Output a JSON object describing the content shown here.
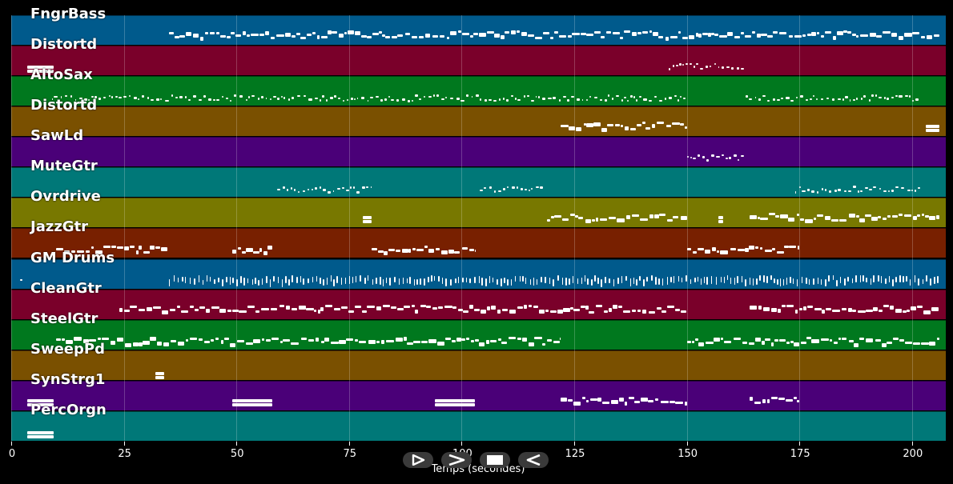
{
  "tracks": [
    {
      "name": "FngrBass",
      "color": "#005a8c"
    },
    {
      "name": "Distortd",
      "color": "#7a002a"
    },
    {
      "name": "AltoSax",
      "color": "#00781e"
    },
    {
      "name": "Distortd",
      "color": "#7a5000"
    },
    {
      "name": "SawLd",
      "color": "#4a0078"
    },
    {
      "name": "MuteGtr",
      "color": "#007878"
    },
    {
      "name": "Ovrdrive",
      "color": "#787800"
    },
    {
      "name": "JazzGtr",
      "color": "#782000"
    },
    {
      "name": "GM Drums",
      "color": "#005a8c"
    },
    {
      "name": "CleanGtr",
      "color": "#7a002a"
    },
    {
      "name": "SteelGtr",
      "color": "#00781e"
    },
    {
      "name": "SweepPd",
      "color": "#7a5000"
    },
    {
      "name": "SynStrg1",
      "color": "#4a0078"
    },
    {
      "name": "PercOrgn",
      "color": "#007878"
    }
  ],
  "note_regions": [
    [
      [
        35,
        206,
        "dense"
      ]
    ],
    [
      [
        3.5,
        9.5,
        "block"
      ],
      [
        146,
        163,
        "sparse"
      ]
    ],
    [
      [
        9,
        150,
        "sparse"
      ],
      [
        163,
        202,
        "sparse"
      ]
    ],
    [
      [
        122,
        150,
        "dense"
      ],
      [
        203,
        206,
        "block"
      ]
    ],
    [
      [
        150,
        163,
        "sparse"
      ]
    ],
    [
      [
        59,
        80,
        "sparse"
      ],
      [
        104,
        118,
        "sparse"
      ],
      [
        174,
        202,
        "sparse"
      ]
    ],
    [
      [
        78,
        80,
        "block"
      ],
      [
        119,
        150,
        "dense"
      ],
      [
        157,
        158,
        "block"
      ],
      [
        164,
        206,
        "dense"
      ]
    ],
    [
      [
        10,
        35,
        "dense"
      ],
      [
        49,
        58,
        "dense"
      ],
      [
        80,
        103,
        "dense"
      ],
      [
        150,
        175,
        "dense"
      ]
    ],
    [
      [
        2,
        3,
        "sparse"
      ],
      [
        35,
        206,
        "drums"
      ]
    ],
    [
      [
        24,
        150,
        "dense"
      ],
      [
        164,
        206,
        "dense"
      ]
    ],
    [
      [
        10,
        122,
        "dense"
      ],
      [
        150,
        206,
        "dense"
      ]
    ],
    [
      [
        32,
        34,
        "block"
      ]
    ],
    [
      [
        3.5,
        9.5,
        "block"
      ],
      [
        49,
        58,
        "block"
      ],
      [
        94,
        103,
        "block"
      ],
      [
        122,
        150,
        "dense"
      ],
      [
        164,
        175,
        "dense"
      ]
    ],
    [
      [
        3.5,
        9.5,
        "block"
      ]
    ]
  ],
  "x_axis": {
    "label": "Temps (secondes)",
    "ticks": [
      "0",
      "25",
      "50",
      "75",
      "100",
      "125",
      "150",
      "175",
      "200"
    ],
    "tick_values": [
      0,
      25,
      50,
      75,
      100,
      125,
      150,
      175,
      200
    ],
    "range": [
      0,
      207.5
    ]
  },
  "controls": [
    {
      "name": "play-button",
      "icon": "play-outline-icon"
    },
    {
      "name": "forward-button",
      "icon": "chevron-right-icon"
    },
    {
      "name": "stop-button",
      "icon": "stop-icon"
    },
    {
      "name": "back-button",
      "icon": "triangle-left-icon"
    }
  ]
}
